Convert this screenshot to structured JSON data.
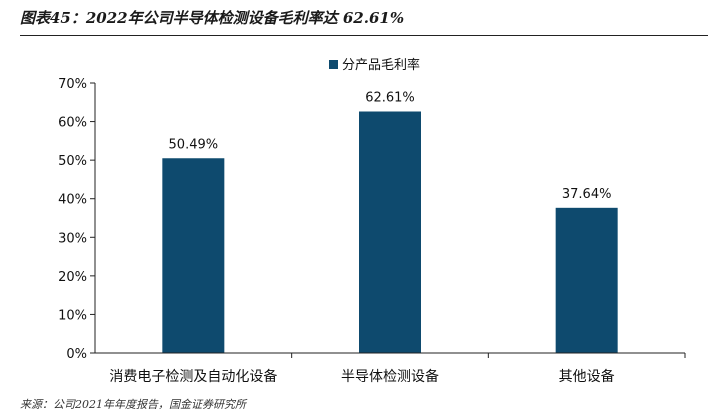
{
  "figure": {
    "title": "图表45：2022年公司半导体检测设备毛利率达 62.61%",
    "source": "来源：公司2021年年度报告，国金证券研究所"
  },
  "colors": {
    "bar": "#0e4a6e",
    "axis": "#222222",
    "text": "#111111"
  },
  "chart_data": {
    "type": "bar",
    "categories": [
      "消费电子检测及自动化设备",
      "半导体检测设备",
      "其他设备"
    ],
    "series": [
      {
        "name": "分产品毛利率",
        "values": [
          50.49,
          62.61,
          37.64
        ]
      }
    ],
    "data_labels": [
      "50.49%",
      "62.61%",
      "37.64%"
    ],
    "ylim": [
      0,
      70
    ],
    "yticks": [
      "0%",
      "10%",
      "20%",
      "30%",
      "40%",
      "50%",
      "60%",
      "70%"
    ],
    "grid": false,
    "legend_position": "top-center"
  }
}
